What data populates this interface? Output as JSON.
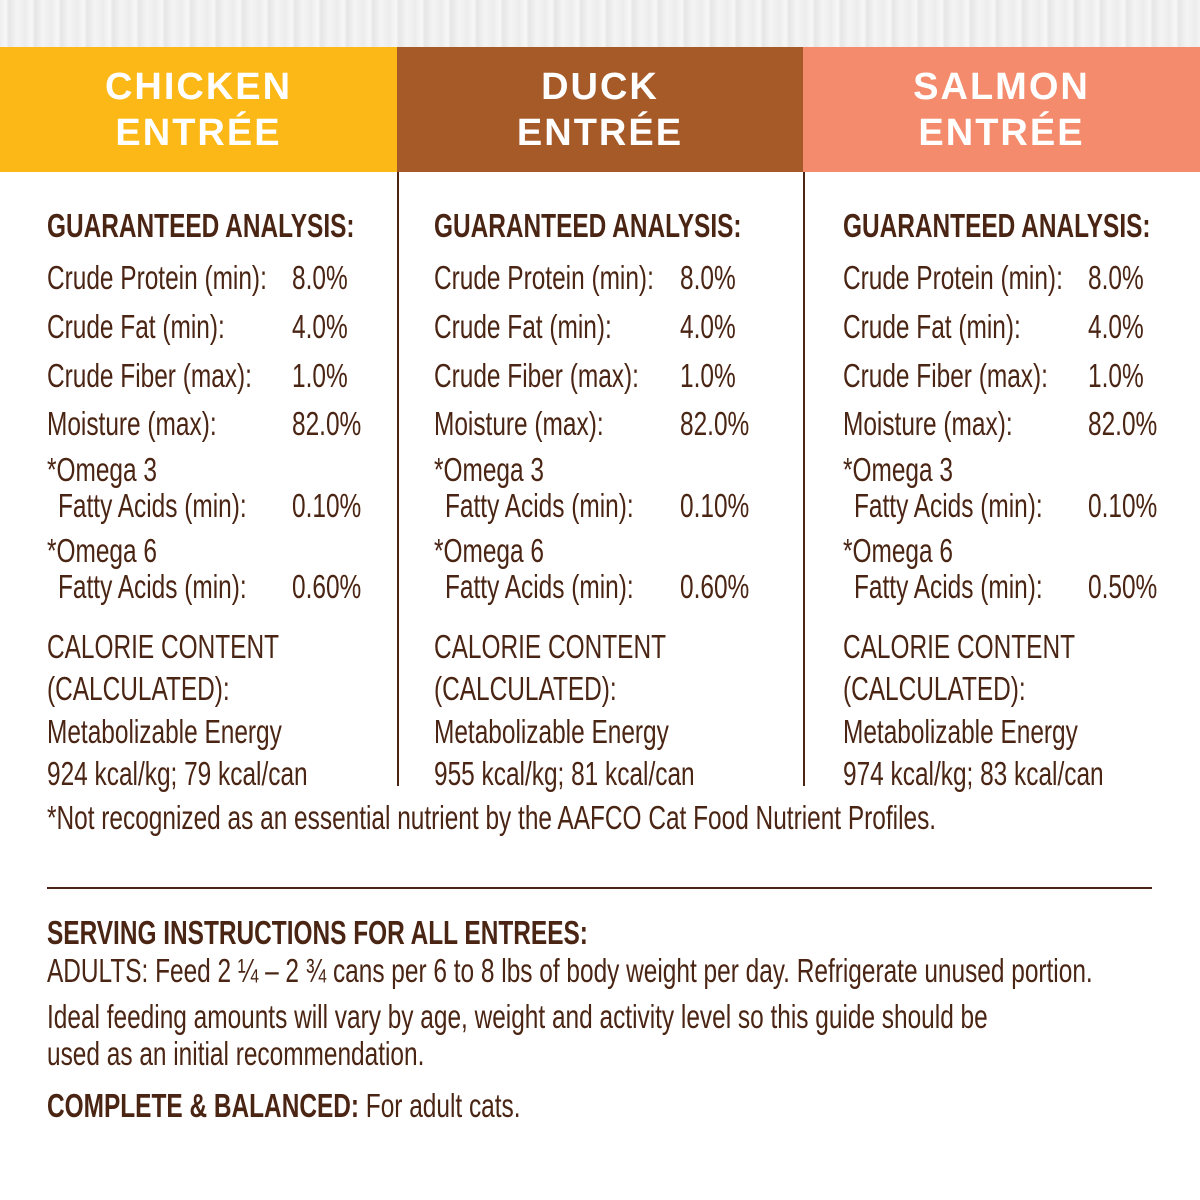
{
  "colors": {
    "chicken": "#fbb817",
    "duck": "#a65a28",
    "salmon": "#f48b6c",
    "text": "#4b2514"
  },
  "columns": [
    {
      "title1": "CHICKEN",
      "title2": "ENTRÉE",
      "heading": "GUARANTEED ANALYSIS:",
      "rows": [
        [
          "Crude Protein (min):",
          "8.0%"
        ],
        [
          "Crude Fat (min):",
          "4.0%"
        ],
        [
          "Crude Fiber (max):",
          "1.0%"
        ],
        [
          "Moisture (max):",
          "82.0%"
        ]
      ],
      "omega3_label": "*Omega 3",
      "omega3_sub": "Fatty Acids (min):",
      "omega3_value": "0.10%",
      "omega6_label": "*Omega 6",
      "omega6_sub": "Fatty Acids (min):",
      "omega6_value": "0.60%",
      "cal1": "CALORIE CONTENT",
      "cal2": "(CALCULATED):",
      "cal3": "Metabolizable Energy",
      "cal4": "924 kcal/kg; 79 kcal/can"
    },
    {
      "title1": "DUCK",
      "title2": "ENTRÉE",
      "heading": "GUARANTEED ANALYSIS:",
      "rows": [
        [
          "Crude Protein (min):",
          "8.0%"
        ],
        [
          "Crude Fat (min):",
          "4.0%"
        ],
        [
          "Crude Fiber (max):",
          "1.0%"
        ],
        [
          "Moisture (max):",
          "82.0%"
        ]
      ],
      "omega3_label": "*Omega 3",
      "omega3_sub": "Fatty Acids (min):",
      "omega3_value": "0.10%",
      "omega6_label": "*Omega 6",
      "omega6_sub": "Fatty Acids (min):",
      "omega6_value": "0.60%",
      "cal1": "CALORIE CONTENT",
      "cal2": "(CALCULATED):",
      "cal3": "Metabolizable Energy",
      "cal4": "955 kcal/kg; 81 kcal/can"
    },
    {
      "title1": "SALMON",
      "title2": "ENTRÉE",
      "heading": "GUARANTEED ANALYSIS:",
      "rows": [
        [
          "Crude Protein (min):",
          "8.0%"
        ],
        [
          "Crude Fat (min):",
          "4.0%"
        ],
        [
          "Crude Fiber (max):",
          "1.0%"
        ],
        [
          "Moisture (max):",
          "82.0%"
        ]
      ],
      "omega3_label": "*Omega 3",
      "omega3_sub": "Fatty Acids (min):",
      "omega3_value": "0.10%",
      "omega6_label": "*Omega 6",
      "omega6_sub": "Fatty Acids (min):",
      "omega6_value": "0.50%",
      "cal1": "CALORIE CONTENT",
      "cal2": "(CALCULATED):",
      "cal3": "Metabolizable Energy",
      "cal4": "974 kcal/kg; 83 kcal/can"
    }
  ],
  "footnote": "*Not recognized as an essential nutrient by the AAFCO Cat Food Nutrient Profiles.",
  "serving": {
    "heading": "SERVING INSTRUCTIONS FOR ALL ENTREES:",
    "line1": "ADULTS: Feed 2 ¼ – 2 ¾ cans per 6 to 8 lbs of body weight per day. Refrigerate unused portion.",
    "line2": "Ideal feeding amounts will vary by age, weight and activity level so this guide should be",
    "line3": "used as an initial recommendation.",
    "complete_label": "COMPLETE & BALANCED:",
    "complete_text": " For adult cats."
  }
}
